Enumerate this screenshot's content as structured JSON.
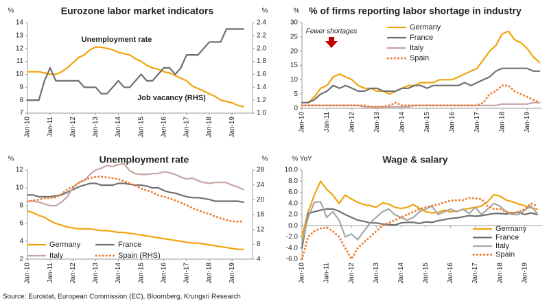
{
  "chart_data": [
    {
      "type": "line",
      "title": "Eurozone labor market indicators",
      "y_unit": "%",
      "y2_unit": "%",
      "x": [
        2010,
        2010.25,
        2010.5,
        2010.75,
        2011,
        2011.25,
        2011.5,
        2011.75,
        2012,
        2012.25,
        2012.5,
        2012.75,
        2013,
        2013.25,
        2013.5,
        2013.75,
        2014,
        2014.25,
        2014.5,
        2014.75,
        2015,
        2015.25,
        2015.5,
        2015.75,
        2016,
        2016.25,
        2016.5,
        2016.75,
        2017,
        2017.25,
        2017.5,
        2017.75,
        2018,
        2018.25,
        2018.5,
        2018.75,
        2019,
        2019.25,
        2019.5
      ],
      "xlim": [
        2010,
        2019.9
      ],
      "xticks": [
        {
          "value": 2010,
          "label": "Jan-10"
        },
        {
          "value": 2011,
          "label": "Jan-11"
        },
        {
          "value": 2012,
          "label": "Jan-12"
        },
        {
          "value": 2013,
          "label": "Jan-13"
        },
        {
          "value": 2014,
          "label": "Jan-14"
        },
        {
          "value": 2015,
          "label": "Jan-15"
        },
        {
          "value": 2016,
          "label": "Jan-16"
        },
        {
          "value": 2017,
          "label": "Jan-17"
        },
        {
          "value": 2018,
          "label": "Jan-18"
        },
        {
          "value": 2019,
          "label": "Jan-19"
        }
      ],
      "ylim": [
        7,
        14
      ],
      "yticks": [
        7,
        8,
        9,
        10,
        11,
        12,
        13,
        14
      ],
      "y2lim": [
        1.0,
        2.4
      ],
      "y2ticks": [
        {
          "value": 1.0,
          "label": "1.0"
        },
        1.2,
        1.4,
        1.6,
        1.8,
        {
          "value": 2.0,
          "label": "2.0"
        },
        2.2,
        2.4
      ],
      "annotations": [
        {
          "text": "Unemployment rate",
          "color": "#f0a30a"
        },
        {
          "text": "Job vacancy (RHS)",
          "color": "#404040"
        }
      ],
      "series": [
        {
          "name": "Unemployment rate",
          "color": "#f0a30a",
          "style": "solid",
          "values": [
            10.2,
            10.2,
            10.2,
            10.1,
            10.0,
            10.0,
            10.2,
            10.5,
            10.9,
            11.3,
            11.5,
            11.9,
            12.1,
            12.1,
            12.0,
            11.9,
            11.7,
            11.6,
            11.5,
            11.2,
            11.0,
            10.7,
            10.5,
            10.4,
            10.2,
            10.1,
            9.9,
            9.7,
            9.5,
            9.1,
            8.9,
            8.7,
            8.5,
            8.3,
            8.0,
            7.9,
            7.8,
            7.6,
            7.5
          ]
        },
        {
          "name": "Job vacancy (RHS)",
          "color": "#6f6f6f",
          "style": "solid",
          "axis": "y2",
          "values": [
            1.2,
            1.2,
            1.2,
            1.5,
            1.7,
            1.5,
            1.5,
            1.5,
            1.5,
            1.5,
            1.4,
            1.4,
            1.4,
            1.3,
            1.3,
            1.4,
            1.5,
            1.4,
            1.4,
            1.5,
            1.6,
            1.5,
            1.5,
            1.6,
            1.7,
            1.7,
            1.6,
            1.7,
            1.9,
            1.9,
            1.9,
            2.0,
            2.1,
            2.1,
            2.1,
            2.3,
            2.3,
            2.3,
            2.3
          ]
        }
      ]
    },
    {
      "type": "line",
      "title": "% of firms reporting labor shortage in industry",
      "y_unit": "%",
      "legend": "upper center",
      "x": [
        2010,
        2010.25,
        2010.5,
        2010.75,
        2011,
        2011.25,
        2011.5,
        2011.75,
        2012,
        2012.25,
        2012.5,
        2012.75,
        2013,
        2013.25,
        2013.5,
        2013.75,
        2014,
        2014.25,
        2014.5,
        2014.75,
        2015,
        2015.25,
        2015.5,
        2015.75,
        2016,
        2016.25,
        2016.5,
        2016.75,
        2017,
        2017.25,
        2017.5,
        2017.75,
        2018,
        2018.25,
        2018.5,
        2018.75,
        2019,
        2019.25,
        2019.5
      ],
      "xlim": [
        2010,
        2019.6
      ],
      "xticks": [
        {
          "value": 2010,
          "label": "Jan-10"
        },
        {
          "value": 2011,
          "label": "Jan-11"
        },
        {
          "value": 2012,
          "label": "Jan-12"
        },
        {
          "value": 2013,
          "label": "Jan-13"
        },
        {
          "value": 2014,
          "label": "Jan-14"
        },
        {
          "value": 2015,
          "label": "Jan-15"
        },
        {
          "value": 2016,
          "label": "Jan-16"
        },
        {
          "value": 2017,
          "label": "Jan-17"
        },
        {
          "value": 2018,
          "label": "Jan-18"
        },
        {
          "value": 2019,
          "label": "Jan-19"
        }
      ],
      "ylim": [
        0,
        30
      ],
      "yticks": [
        0,
        5,
        10,
        15,
        20,
        25,
        30
      ],
      "annotations": [
        {
          "text": "Fewer shortages",
          "color": "#c00000"
        }
      ],
      "series": [
        {
          "name": "Germany",
          "color": "#f0a30a",
          "style": "solid",
          "values": [
            2,
            2,
            4,
            7,
            8,
            11,
            12,
            11,
            10,
            8,
            7,
            7,
            6,
            6,
            5,
            6,
            7,
            8,
            8,
            9,
            9,
            9,
            10,
            10,
            10,
            11,
            12,
            13,
            14,
            17,
            20,
            22,
            26,
            27,
            24,
            23,
            21,
            18,
            16
          ]
        },
        {
          "name": "France",
          "color": "#6f6f6f",
          "style": "solid",
          "values": [
            2,
            2,
            3,
            5,
            6,
            8,
            7,
            8,
            7,
            6,
            6,
            7,
            7,
            6,
            6,
            6,
            7,
            7,
            8,
            8,
            7,
            8,
            8,
            8,
            8,
            8,
            9,
            8,
            9,
            10,
            11,
            13,
            14,
            14,
            14,
            14,
            14,
            13,
            13
          ]
        },
        {
          "name": "Italy",
          "color": "#c9a3a3",
          "style": "solid",
          "values": [
            1,
            1,
            1,
            1,
            1,
            1,
            1,
            1,
            1,
            1,
            0.5,
            0.5,
            0.5,
            0.5,
            0.5,
            0.5,
            0.5,
            0.5,
            1,
            1,
            1,
            1,
            1,
            1,
            1,
            1,
            1,
            1,
            1,
            1,
            1,
            1,
            1.5,
            1.5,
            1.5,
            1.5,
            1.5,
            2,
            2
          ]
        },
        {
          "name": "Spain",
          "color": "#ed7d31",
          "style": "dotted",
          "values": [
            1,
            1,
            1,
            1,
            1,
            1,
            1,
            1,
            1,
            1,
            1,
            0.5,
            0.5,
            0.5,
            1,
            2,
            1,
            1,
            1,
            1,
            1,
            1,
            1,
            1,
            1,
            1,
            1,
            1,
            1,
            2,
            5,
            6,
            8,
            8,
            6,
            5,
            4,
            3,
            2
          ]
        }
      ]
    },
    {
      "type": "line",
      "title": "Unemployment rate",
      "y_unit": "%",
      "y2_unit": "%",
      "legend": "lower left",
      "x": [
        2010,
        2010.25,
        2010.5,
        2010.75,
        2011,
        2011.25,
        2011.5,
        2011.75,
        2012,
        2012.25,
        2012.5,
        2012.75,
        2013,
        2013.25,
        2013.5,
        2013.75,
        2014,
        2014.25,
        2014.5,
        2014.75,
        2015,
        2015.25,
        2015.5,
        2015.75,
        2016,
        2016.25,
        2016.5,
        2016.75,
        2017,
        2017.25,
        2017.5,
        2017.75,
        2018,
        2018.25,
        2018.5,
        2018.75,
        2019,
        2019.25,
        2019.5
      ],
      "xlim": [
        2010,
        2019.9
      ],
      "xticks": [
        {
          "value": 2010,
          "label": "Jan-10"
        },
        {
          "value": 2011,
          "label": "Jan-11"
        },
        {
          "value": 2012,
          "label": "Jan-12"
        },
        {
          "value": 2013,
          "label": "Jan-13"
        },
        {
          "value": 2014,
          "label": "Jan-14"
        },
        {
          "value": 2015,
          "label": "Jan-15"
        },
        {
          "value": 2016,
          "label": "Jan-16"
        },
        {
          "value": 2017,
          "label": "Jan-17"
        },
        {
          "value": 2018,
          "label": "Jan-18"
        },
        {
          "value": 2019,
          "label": "Jan-19"
        }
      ],
      "ylim": [
        2,
        12
      ],
      "yticks": [
        2,
        4,
        6,
        8,
        10,
        12
      ],
      "y2lim": [
        4,
        28
      ],
      "y2ticks": [
        4,
        8,
        12,
        16,
        20,
        24,
        28
      ],
      "series": [
        {
          "name": "Germany",
          "color": "#f0a30a",
          "style": "solid",
          "values": [
            7.4,
            7.2,
            6.9,
            6.7,
            6.3,
            6.0,
            5.8,
            5.6,
            5.5,
            5.4,
            5.4,
            5.4,
            5.3,
            5.2,
            5.2,
            5.1,
            5.0,
            5.0,
            4.9,
            4.8,
            4.7,
            4.6,
            4.5,
            4.4,
            4.3,
            4.2,
            4.1,
            4.0,
            3.9,
            3.8,
            3.8,
            3.7,
            3.6,
            3.5,
            3.4,
            3.3,
            3.2,
            3.1,
            3.1
          ]
        },
        {
          "name": "France",
          "color": "#6f6f6f",
          "style": "solid",
          "values": [
            9.2,
            9.2,
            9.0,
            9.0,
            9.0,
            9.1,
            9.2,
            9.5,
            9.8,
            10.1,
            10.3,
            10.5,
            10.5,
            10.3,
            10.3,
            10.3,
            10.5,
            10.5,
            10.4,
            10.3,
            10.3,
            10.2,
            10.0,
            10.0,
            9.7,
            9.5,
            9.4,
            9.2,
            9.0,
            8.9,
            8.9,
            8.8,
            8.7,
            8.5,
            8.5,
            8.5,
            8.5,
            8.5,
            8.4
          ]
        },
        {
          "name": "Italy",
          "color": "#c9a3a3",
          "style": "solid",
          "values": [
            8.5,
            8.5,
            8.4,
            8.2,
            8.0,
            8.0,
            8.4,
            9.0,
            10.0,
            10.6,
            10.8,
            11.5,
            12.0,
            12.2,
            12.5,
            12.4,
            12.6,
            12.7,
            11.9,
            11.6,
            11.5,
            11.5,
            11.6,
            11.6,
            11.8,
            11.7,
            11.5,
            11.2,
            11.0,
            11.1,
            10.8,
            10.6,
            10.5,
            10.6,
            10.6,
            10.6,
            10.3,
            10.1,
            9.8
          ]
        },
        {
          "name": "Spain (RHS)",
          "color": "#ed7d31",
          "style": "dotted",
          "axis": "y2",
          "values": [
            19.5,
            19.8,
            20.0,
            20.4,
            20.5,
            20.6,
            21.5,
            22.8,
            23.5,
            24.5,
            25.3,
            25.8,
            26.2,
            26.2,
            26.0,
            25.8,
            25.5,
            25.0,
            24.4,
            23.8,
            23.0,
            22.5,
            22.0,
            21.2,
            20.8,
            20.4,
            19.8,
            19.2,
            18.5,
            17.8,
            17.2,
            16.6,
            16.2,
            15.5,
            15.0,
            14.5,
            14.2,
            14.1,
            14.2
          ]
        }
      ]
    },
    {
      "type": "line",
      "title": "Wage & salary",
      "y_unit": "% YoY",
      "legend": "lower right",
      "x": [
        2010,
        2010.25,
        2010.5,
        2010.75,
        2011,
        2011.25,
        2011.5,
        2011.75,
        2012,
        2012.25,
        2012.5,
        2012.75,
        2013,
        2013.25,
        2013.5,
        2013.75,
        2014,
        2014.25,
        2014.5,
        2014.75,
        2015,
        2015.25,
        2015.5,
        2015.75,
        2016,
        2016.25,
        2016.5,
        2016.75,
        2017,
        2017.25,
        2017.5,
        2017.75,
        2018,
        2018.25,
        2018.5,
        2018.75,
        2019,
        2019.25,
        2019.5
      ],
      "xlim": [
        2010,
        2019.7
      ],
      "xticks": [
        {
          "value": 2010,
          "label": "Jan-10"
        },
        {
          "value": 2011,
          "label": "Jan-11"
        },
        {
          "value": 2012,
          "label": "Jan-12"
        },
        {
          "value": 2013,
          "label": "Jan-13"
        },
        {
          "value": 2014,
          "label": "Jan-14"
        },
        {
          "value": 2015,
          "label": "Jan-15"
        },
        {
          "value": 2016,
          "label": "Jan-16"
        },
        {
          "value": 2017,
          "label": "Jan-17"
        },
        {
          "value": 2018,
          "label": "Jan-18"
        },
        {
          "value": 2019,
          "label": "Jan-19"
        }
      ],
      "ylim": [
        -6,
        10
      ],
      "yticks": [
        {
          "value": -6,
          "label": "-6.0"
        },
        {
          "value": -4,
          "label": "-4.0"
        },
        {
          "value": -2,
          "label": "-2.0"
        },
        {
          "value": 0,
          "label": "0.0"
        },
        {
          "value": 2,
          "label": "2.0"
        },
        {
          "value": 4,
          "label": "4.0"
        },
        {
          "value": 6,
          "label": "6.0"
        },
        {
          "value": 8,
          "label": "8.0"
        },
        {
          "value": 10,
          "label": "10.0"
        }
      ],
      "series": [
        {
          "name": "Germany",
          "color": "#f0a30a",
          "style": "solid",
          "values": [
            -2,
            2.5,
            5.5,
            8,
            6.5,
            5.5,
            4.0,
            5.5,
            4.8,
            4.2,
            3.8,
            3.6,
            3.3,
            4.1,
            3.9,
            3.3,
            3.1,
            3.3,
            3.8,
            3.1,
            2.5,
            2.3,
            2.4,
            2.8,
            2.5,
            2.6,
            2.9,
            3.1,
            3.3,
            3.5,
            4.3,
            5.6,
            5.3,
            4.6,
            4.3,
            3.9,
            3.6,
            3.2,
            3.0
          ]
        },
        {
          "name": "France",
          "color": "#6f6f6f",
          "style": "solid",
          "values": [
            -4,
            2.2,
            2.5,
            2.8,
            3.0,
            3.0,
            2.6,
            2.0,
            1.5,
            1.0,
            0.8,
            0.5,
            0.5,
            0.3,
            0.2,
            0.1,
            0.5,
            0.6,
            0.6,
            0.4,
            0.7,
            0.6,
            0.9,
            1.1,
            1.3,
            1.4,
            1.6,
            1.8,
            1.7,
            1.8,
            2.0,
            2.2,
            2.2,
            2.1,
            2.3,
            2.4,
            2.0,
            2.3,
            2.0
          ]
        },
        {
          "name": "Italy",
          "color": "#a6a6a6",
          "style": "solid",
          "values": [
            -3,
            1.5,
            4.2,
            4.3,
            1.5,
            2.5,
            1.0,
            -2.0,
            -1.5,
            -2.5,
            -1.0,
            0.5,
            1.5,
            2.5,
            3.0,
            2.0,
            1.5,
            1.0,
            1.5,
            2.5,
            3.0,
            3.5,
            2.0,
            2.5,
            3.0,
            2.5,
            3.0,
            2.2,
            3.3,
            2.0,
            3.0,
            4.0,
            3.5,
            2.5,
            2.0,
            2.0,
            2.8,
            3.5,
            2.2
          ]
        },
        {
          "name": "Spain",
          "color": "#ed7d31",
          "style": "dotted",
          "values": [
            -6,
            -2,
            -1,
            -0.5,
            -0.3,
            -1,
            -2,
            -4,
            -6,
            -4,
            -3,
            -2,
            -1,
            0,
            0.5,
            1,
            1.5,
            2,
            2.5,
            3,
            3.3,
            3.6,
            3.8,
            4.2,
            4.5,
            4.6,
            4.6,
            5.0,
            4.9,
            4.8,
            3.5,
            3.0,
            3.0,
            2.5,
            2.2,
            2.5,
            3.0,
            4.0,
            3.5
          ]
        }
      ]
    }
  ],
  "source": "Source: Eurostat, European Commission (EC), Bloomberg, Krungsri Research"
}
